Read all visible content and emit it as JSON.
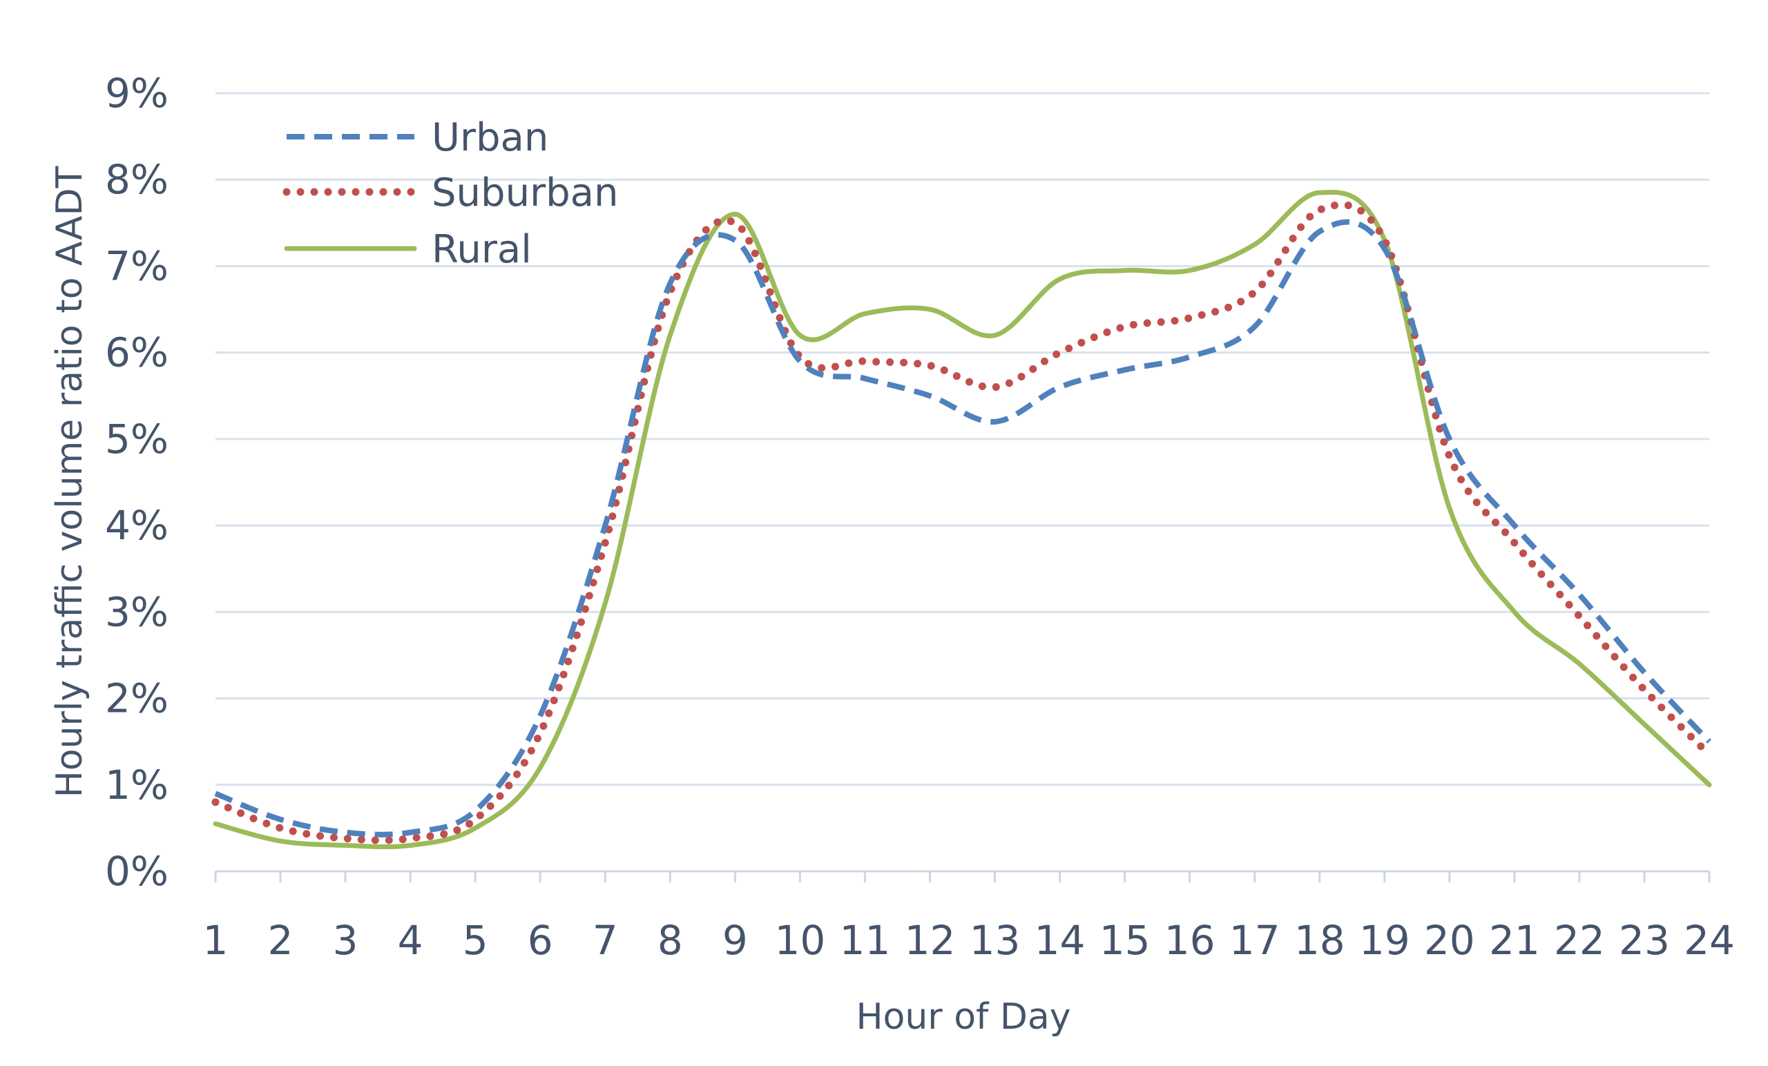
{
  "chart_data": {
    "type": "line",
    "title": "",
    "xlabel": "Hour of Day",
    "ylabel": "Hourly traffic volume ratio to AADT",
    "x": [
      1,
      2,
      3,
      4,
      5,
      6,
      7,
      8,
      9,
      10,
      11,
      12,
      13,
      14,
      15,
      16,
      17,
      18,
      19,
      20,
      21,
      22,
      23,
      24
    ],
    "x_tick_labels": [
      "1",
      "2",
      "3",
      "4",
      "5",
      "6",
      "7",
      "8",
      "9",
      "10",
      "11",
      "12",
      "13",
      "14",
      "15",
      "16",
      "17",
      "18",
      "19",
      "20",
      "21",
      "22",
      "23",
      "24"
    ],
    "ylim": [
      0,
      9
    ],
    "y_ticks": [
      0,
      1,
      2,
      3,
      4,
      5,
      6,
      7,
      8,
      9
    ],
    "y_tick_labels": [
      "0%",
      "1%",
      "2%",
      "3%",
      "4%",
      "5%",
      "6%",
      "7%",
      "8%",
      "9%"
    ],
    "grid": true,
    "legend_position": "top-left",
    "series": [
      {
        "name": "Urban",
        "color": "#4f81bd",
        "style": "dashed",
        "values": [
          0.9,
          0.6,
          0.45,
          0.45,
          0.7,
          1.8,
          4.0,
          6.8,
          7.3,
          5.9,
          5.7,
          5.5,
          5.2,
          5.6,
          5.8,
          5.95,
          6.3,
          7.4,
          7.2,
          5.0,
          4.0,
          3.2,
          2.3,
          1.5
        ]
      },
      {
        "name": "Suburban",
        "color": "#c0504d",
        "style": "dotted",
        "values": [
          0.8,
          0.5,
          0.38,
          0.38,
          0.6,
          1.6,
          3.8,
          6.7,
          7.5,
          5.95,
          5.9,
          5.85,
          5.6,
          6.0,
          6.3,
          6.4,
          6.7,
          7.65,
          7.3,
          4.8,
          3.8,
          2.95,
          2.1,
          1.35
        ]
      },
      {
        "name": "Rural",
        "color": "#9bbb59",
        "style": "solid",
        "values": [
          0.55,
          0.35,
          0.3,
          0.3,
          0.5,
          1.2,
          3.1,
          6.2,
          7.6,
          6.2,
          6.45,
          6.5,
          6.2,
          6.85,
          6.95,
          6.95,
          7.25,
          7.85,
          7.3,
          4.2,
          3.0,
          2.4,
          1.7,
          1.0
        ]
      }
    ]
  }
}
